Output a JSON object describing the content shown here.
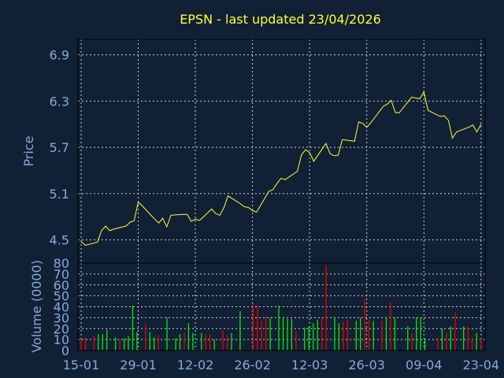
{
  "chart_data": [
    {
      "type": "line",
      "title": "EPSN - last updated 23/04/2026",
      "ylabel": "Price",
      "ylim": [
        4.2,
        7.1
      ],
      "yticks": [
        "4.5",
        "5.1",
        "5.7",
        "6.3",
        "6.9"
      ],
      "grid": true,
      "line_color": "#ffff33",
      "x": [
        "2026-01-15",
        "2026-01-16",
        "2026-01-19",
        "2026-01-20",
        "2026-01-21",
        "2026-01-22",
        "2026-01-23",
        "2026-01-26",
        "2026-01-27",
        "2026-01-28",
        "2026-01-29",
        "2026-01-30",
        "2026-02-02",
        "2026-02-03",
        "2026-02-04",
        "2026-02-05",
        "2026-02-06",
        "2026-02-09",
        "2026-02-10",
        "2026-02-11",
        "2026-02-12",
        "2026-02-13",
        "2026-02-16",
        "2026-02-17",
        "2026-02-18",
        "2026-02-19",
        "2026-02-20",
        "2026-02-23",
        "2026-02-24",
        "2026-02-25",
        "2026-02-26",
        "2026-02-27",
        "2026-03-02",
        "2026-03-03",
        "2026-03-04",
        "2026-03-05",
        "2026-03-06",
        "2026-03-09",
        "2026-03-10",
        "2026-03-11",
        "2026-03-12",
        "2026-03-13",
        "2026-03-16",
        "2026-03-17",
        "2026-03-18",
        "2026-03-19",
        "2026-03-20",
        "2026-03-23",
        "2026-03-24",
        "2026-03-25",
        "2026-03-26",
        "2026-03-27",
        "2026-03-30",
        "2026-03-31",
        "2026-04-01",
        "2026-04-02",
        "2026-04-03",
        "2026-04-06",
        "2026-04-07",
        "2026-04-08",
        "2026-04-09",
        "2026-04-10",
        "2026-04-13",
        "2026-04-14",
        "2026-04-15",
        "2026-04-16",
        "2026-04-17",
        "2026-04-20",
        "2026-04-21",
        "2026-04-22",
        "2026-04-23"
      ],
      "values": [
        4.48,
        4.43,
        4.47,
        4.62,
        4.68,
        4.62,
        4.64,
        4.68,
        4.73,
        4.75,
        4.99,
        4.94,
        4.77,
        4.72,
        4.78,
        4.67,
        4.82,
        4.83,
        4.83,
        4.74,
        4.77,
        4.75,
        4.9,
        4.84,
        4.82,
        4.92,
        5.07,
        4.97,
        4.93,
        4.92,
        4.88,
        4.86,
        5.13,
        5.15,
        5.23,
        5.3,
        5.28,
        5.39,
        5.6,
        5.67,
        5.63,
        5.52,
        5.75,
        5.62,
        5.59,
        5.6,
        5.8,
        5.78,
        6.03,
        6.01,
        5.96,
        6.02,
        6.23,
        6.26,
        6.31,
        6.15,
        6.15,
        6.35,
        6.34,
        6.33,
        6.42,
        6.18,
        6.1,
        6.11,
        6.05,
        5.82,
        5.9,
        5.96,
        5.99,
        5.9,
        6.0
      ]
    },
    {
      "type": "bar",
      "ylabel": "Volume (0000)",
      "ylim": [
        0,
        80
      ],
      "yticks": [
        "0",
        "10",
        "20",
        "30",
        "40",
        "50",
        "60",
        "70",
        "80"
      ],
      "xticks": [
        "15-01",
        "29-01",
        "12-02",
        "26-02",
        "12-03",
        "26-03",
        "09-04",
        "23-04"
      ],
      "grid": true,
      "up_color": "#00ee00",
      "down_color": "#ee0000",
      "values": [
        10,
        12,
        0,
        13,
        15,
        15,
        19,
        0,
        12,
        10,
        11,
        13,
        41,
        17,
        0,
        24,
        17,
        12,
        14,
        0,
        30,
        0,
        11,
        15,
        16,
        25,
        16,
        0,
        16,
        14,
        15,
        10,
        0,
        18,
        14,
        16,
        0,
        36,
        0,
        0,
        43,
        41,
        27,
        31,
        30,
        0,
        41,
        30,
        29,
        29,
        18,
        0,
        21,
        22,
        25,
        28,
        30,
        78,
        0,
        30,
        25,
        26,
        28,
        0,
        27,
        30,
        47,
        28,
        27,
        0,
        27,
        30,
        44,
        30,
        0,
        0,
        22,
        16,
        30,
        30,
        11,
        0,
        0,
        11,
        20,
        16,
        22,
        35,
        0,
        22,
        22,
        12,
        16,
        11
      ]
    }
  ]
}
